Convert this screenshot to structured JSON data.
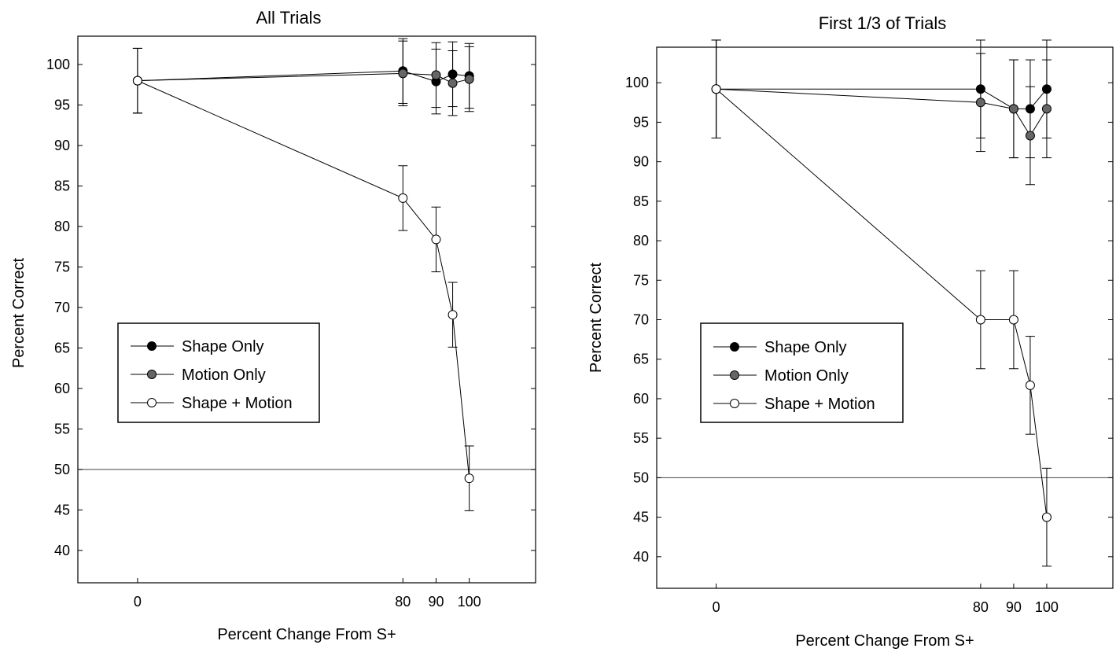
{
  "chart_data": [
    {
      "type": "line",
      "title": "All Trials",
      "xlabel": "Percent Change From S+",
      "ylabel": "Percent Correct",
      "x_ticks": [
        0,
        80,
        90,
        100
      ],
      "y_ticks": [
        40,
        45,
        50,
        55,
        60,
        65,
        70,
        75,
        80,
        85,
        90,
        95,
        100
      ],
      "ylim": [
        36,
        103.5
      ],
      "xlim": [
        -18,
        120
      ],
      "reference_line": 50,
      "legend_position": "left-middle",
      "legend": [
        "Shape Only",
        "Motion Only",
        "Shape + Motion"
      ],
      "series": [
        {
          "name": "Shape Only",
          "color": "#000000",
          "x": [
            0,
            80,
            90,
            95,
            100
          ],
          "y": [
            98,
            99.2,
            97.9,
            98.8,
            98.6
          ],
          "err": [
            4,
            4,
            4,
            4,
            4
          ]
        },
        {
          "name": "Motion Only",
          "color": "#666666",
          "x": [
            0,
            80,
            90,
            95,
            100
          ],
          "y": [
            98,
            98.9,
            98.7,
            97.7,
            98.2
          ],
          "err": [
            4,
            4,
            4,
            4,
            4
          ]
        },
        {
          "name": "Shape + Motion",
          "color": "#ffffff",
          "x": [
            0,
            80,
            90,
            95,
            100
          ],
          "y": [
            98,
            83.5,
            78.4,
            69.1,
            48.9
          ],
          "err": [
            4,
            4,
            4,
            4,
            4
          ]
        }
      ]
    },
    {
      "type": "line",
      "title": "First 1/3 of Trials",
      "xlabel": "Percent Change From S+",
      "ylabel": "Percent Correct",
      "x_ticks": [
        0,
        80,
        90,
        100
      ],
      "y_ticks": [
        40,
        45,
        50,
        55,
        60,
        65,
        70,
        75,
        80,
        85,
        90,
        95,
        100
      ],
      "ylim": [
        36,
        104.5
      ],
      "xlim": [
        -18,
        120
      ],
      "reference_line": 50,
      "legend_position": "left-middle",
      "legend": [
        "Shape Only",
        "Motion Only",
        "Shape + Motion"
      ],
      "series": [
        {
          "name": "Shape Only",
          "color": "#000000",
          "x": [
            0,
            80,
            90,
            95,
            100
          ],
          "y": [
            99.2,
            99.2,
            96.7,
            96.7,
            99.2
          ],
          "err": [
            6.2,
            6.2,
            6.2,
            6.2,
            6.2
          ]
        },
        {
          "name": "Motion Only",
          "color": "#666666",
          "x": [
            0,
            80,
            90,
            95,
            100
          ],
          "y": [
            99.2,
            97.5,
            96.7,
            93.3,
            96.7
          ],
          "err": [
            6.2,
            6.2,
            6.2,
            6.2,
            6.2
          ]
        },
        {
          "name": "Shape + Motion",
          "color": "#ffffff",
          "x": [
            0,
            80,
            90,
            95,
            100
          ],
          "y": [
            99.2,
            70,
            70,
            61.7,
            45
          ],
          "err": [
            6.2,
            6.2,
            6.2,
            6.2,
            6.2
          ]
        }
      ]
    }
  ]
}
